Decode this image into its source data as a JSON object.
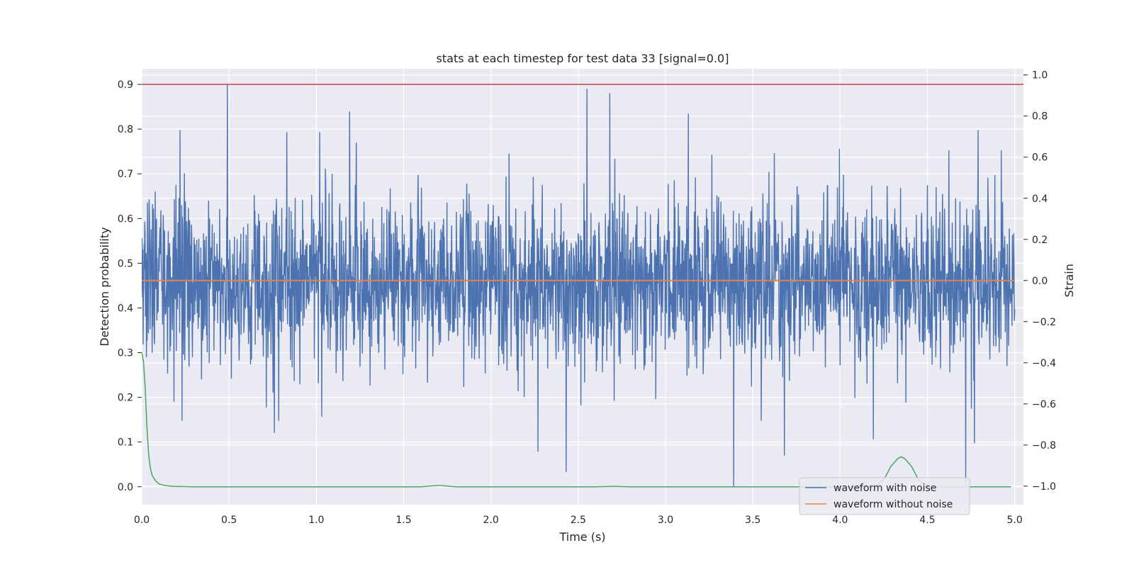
{
  "chart_data": {
    "type": "line",
    "title": "stats at each timestep for test data 33 [signal=0.0]",
    "xlabel": "Time (s)",
    "ylabel": "Detection probability",
    "y2label": "Strain",
    "xlim": [
      0.0,
      5.05
    ],
    "ylim": [
      -0.04,
      0.935
    ],
    "y2lim": [
      -1.09,
      1.03
    ],
    "xticks": [
      "0.0",
      "0.5",
      "1.0",
      "1.5",
      "2.0",
      "2.5",
      "3.0",
      "3.5",
      "4.0",
      "4.5",
      "5.0"
    ],
    "xtick_values": [
      0,
      0.5,
      1.0,
      1.5,
      2.0,
      2.5,
      3.0,
      3.5,
      4.0,
      4.5,
      5.0
    ],
    "yticks": [
      "0.0",
      "0.1",
      "0.2",
      "0.3",
      "0.4",
      "0.5",
      "0.6",
      "0.7",
      "0.8",
      "0.9"
    ],
    "ytick_values": [
      0,
      0.1,
      0.2,
      0.3,
      0.4,
      0.5,
      0.6,
      0.7,
      0.8,
      0.9
    ],
    "y2ticks": [
      "−1.0",
      "−0.8",
      "−0.6",
      "−0.4",
      "−0.2",
      "0.0",
      "0.2",
      "0.4",
      "0.6",
      "0.8",
      "1.0"
    ],
    "y2tick_values": [
      -1.0,
      -0.8,
      -0.6,
      -0.4,
      -0.2,
      0.0,
      0.2,
      0.4,
      0.6,
      0.8,
      1.0
    ],
    "grid": true,
    "legend_position": "lower-right",
    "threshold": {
      "value": 0.9,
      "color": "#c44e52"
    },
    "series": [
      {
        "name": "waveform with noise",
        "axis": "right",
        "color": "#4c72b0",
        "noise_sigma": 0.2,
        "x_start": 0.0,
        "x_end": 5.0,
        "peaks": [
          {
            "x": 0.49,
            "y": 0.95
          },
          {
            "x": 1.19,
            "y": 0.82
          },
          {
            "x": 2.55,
            "y": 0.93
          },
          {
            "x": 2.68,
            "y": 0.91
          },
          {
            "x": 3.13,
            "y": 0.81
          },
          {
            "x": 0.22,
            "y": 0.73
          },
          {
            "x": 4.79,
            "y": 0.73
          },
          {
            "x": 0.83,
            "y": 0.72
          },
          {
            "x": 2.43,
            "y": 0.74
          },
          {
            "x": 3.39,
            "y": -1.0
          },
          {
            "x": 2.43,
            "y": -0.93
          },
          {
            "x": 2.27,
            "y": -0.83
          },
          {
            "x": 4.72,
            "y": -0.98
          },
          {
            "x": 3.68,
            "y": -0.85
          },
          {
            "x": 4.19,
            "y": -0.77
          },
          {
            "x": 0.76,
            "y": -0.74
          },
          {
            "x": 4.77,
            "y": -0.79
          },
          {
            "x": 1.03,
            "y": -0.66
          },
          {
            "x": 0.23,
            "y": -0.68
          }
        ]
      },
      {
        "name": "waveform without noise",
        "axis": "right",
        "color": "#dd8452",
        "constant": 0.0
      },
      {
        "name": "",
        "axis": "left",
        "color": "#55a868",
        "points": [
          [
            0.0,
            0.3
          ],
          [
            0.01,
            0.28
          ],
          [
            0.02,
            0.22
          ],
          [
            0.03,
            0.13
          ],
          [
            0.04,
            0.07
          ],
          [
            0.05,
            0.04
          ],
          [
            0.06,
            0.025
          ],
          [
            0.08,
            0.013
          ],
          [
            0.1,
            0.006
          ],
          [
            0.13,
            0.003
          ],
          [
            0.17,
            0.001
          ],
          [
            0.3,
            0.0
          ],
          [
            1.6,
            0.0
          ],
          [
            1.7,
            0.003
          ],
          [
            1.8,
            0.0
          ],
          [
            2.6,
            0.0
          ],
          [
            2.7,
            0.001
          ],
          [
            2.8,
            0.0
          ],
          [
            4.2,
            0.0
          ],
          [
            4.25,
            0.015
          ],
          [
            4.29,
            0.045
          ],
          [
            4.33,
            0.063
          ],
          [
            4.35,
            0.067
          ],
          [
            4.37,
            0.063
          ],
          [
            4.41,
            0.045
          ],
          [
            4.45,
            0.015
          ],
          [
            4.5,
            0.0
          ],
          [
            4.98,
            0.0
          ]
        ]
      }
    ]
  }
}
